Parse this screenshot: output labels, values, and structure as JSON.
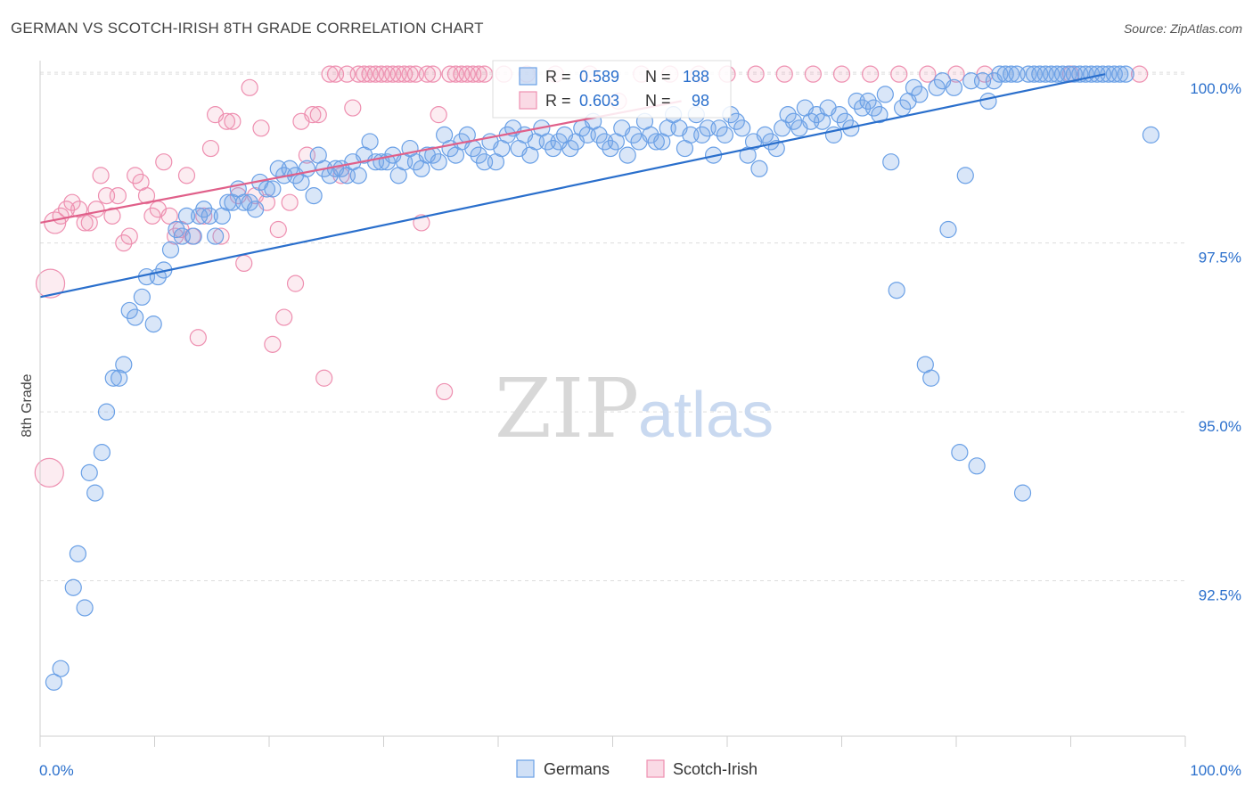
{
  "header": {
    "title": "GERMAN VS SCOTCH-IRISH 8TH GRADE CORRELATION CHART",
    "source": "Source: ZipAtlas.com"
  },
  "watermark": {
    "zip": "ZIP",
    "atlas": "atlas"
  },
  "colors": {
    "germans": "#6aa0e6",
    "germans_fill": "rgba(120,165,230,0.28)",
    "germans_line": "#2a6fcc",
    "scotch_irish": "#ee8fb0",
    "scotch_irish_fill": "rgba(240,150,180,0.18)",
    "scotch_irish_line": "#e0608a",
    "value_text": "#2a6fcc",
    "grid": "#dddddd"
  },
  "legend_box": {
    "row1": {
      "r_label": "R = ",
      "r_value": "0.589",
      "n_label": "N = ",
      "n_value": "188"
    },
    "row2": {
      "r_label": "R = ",
      "r_value": "0.603",
      "n_label": "N = ",
      "n_value": "98"
    }
  },
  "chart_data": {
    "type": "scatter",
    "title": "GERMAN VS SCOTCH-IRISH 8TH GRADE CORRELATION CHART",
    "xlabel": "",
    "ylabel": "8th Grade",
    "xlim": [
      0,
      100
    ],
    "ylim": [
      90.2,
      100.2
    ],
    "x_tick_labels": [
      "0.0%",
      "100.0%"
    ],
    "y_ticks": [
      92.5,
      95.0,
      97.5,
      100.0
    ],
    "y_tick_labels": [
      "92.5%",
      "95.0%",
      "97.5%",
      "100.0%"
    ],
    "grid": true,
    "legend_position": "bottom-center",
    "series": [
      {
        "name": "Germans",
        "r": 0.589,
        "n": 188,
        "trend": [
          [
            0,
            96.7
          ],
          [
            93,
            100.0
          ]
        ],
        "points": [
          [
            1.2,
            91.0
          ],
          [
            1.8,
            91.2
          ],
          [
            2.9,
            92.4
          ],
          [
            3.3,
            92.9
          ],
          [
            3.9,
            92.1
          ],
          [
            4.3,
            94.1
          ],
          [
            4.8,
            93.8
          ],
          [
            5.4,
            94.4
          ],
          [
            5.8,
            95.0
          ],
          [
            6.4,
            95.5
          ],
          [
            6.9,
            95.5
          ],
          [
            7.3,
            95.7
          ],
          [
            7.8,
            96.5
          ],
          [
            8.3,
            96.4
          ],
          [
            8.9,
            96.7
          ],
          [
            9.3,
            97.0
          ],
          [
            9.9,
            96.3
          ],
          [
            10.3,
            97.0
          ],
          [
            10.8,
            97.1
          ],
          [
            11.4,
            97.4
          ],
          [
            11.9,
            97.7
          ],
          [
            12.4,
            97.6
          ],
          [
            12.8,
            97.9
          ],
          [
            13.4,
            97.6
          ],
          [
            13.9,
            97.9
          ],
          [
            14.3,
            98.0
          ],
          [
            14.8,
            97.9
          ],
          [
            15.3,
            97.6
          ],
          [
            15.9,
            97.9
          ],
          [
            16.4,
            98.1
          ],
          [
            16.8,
            98.1
          ],
          [
            17.3,
            98.3
          ],
          [
            17.8,
            98.1
          ],
          [
            18.3,
            98.1
          ],
          [
            18.8,
            98.0
          ],
          [
            19.2,
            98.4
          ],
          [
            19.8,
            98.3
          ],
          [
            20.3,
            98.3
          ],
          [
            20.8,
            98.6
          ],
          [
            21.3,
            98.5
          ],
          [
            21.8,
            98.6
          ],
          [
            22.3,
            98.5
          ],
          [
            22.8,
            98.4
          ],
          [
            23.3,
            98.6
          ],
          [
            23.9,
            98.2
          ],
          [
            24.3,
            98.8
          ],
          [
            24.8,
            98.6
          ],
          [
            25.3,
            98.5
          ],
          [
            25.8,
            98.6
          ],
          [
            26.3,
            98.6
          ],
          [
            26.8,
            98.5
          ],
          [
            27.3,
            98.7
          ],
          [
            27.8,
            98.5
          ],
          [
            28.3,
            98.8
          ],
          [
            28.8,
            99.0
          ],
          [
            29.3,
            98.7
          ],
          [
            29.8,
            98.7
          ],
          [
            30.3,
            98.7
          ],
          [
            30.8,
            98.8
          ],
          [
            31.3,
            98.5
          ],
          [
            31.8,
            98.7
          ],
          [
            32.3,
            98.9
          ],
          [
            32.8,
            98.7
          ],
          [
            33.3,
            98.6
          ],
          [
            33.8,
            98.8
          ],
          [
            34.3,
            98.8
          ],
          [
            34.8,
            98.7
          ],
          [
            35.3,
            99.1
          ],
          [
            35.8,
            98.9
          ],
          [
            36.3,
            98.8
          ],
          [
            36.8,
            99.0
          ],
          [
            37.3,
            99.1
          ],
          [
            37.8,
            98.9
          ],
          [
            38.3,
            98.8
          ],
          [
            38.8,
            98.7
          ],
          [
            39.3,
            99.0
          ],
          [
            39.8,
            98.7
          ],
          [
            40.3,
            98.9
          ],
          [
            40.8,
            99.1
          ],
          [
            41.3,
            99.2
          ],
          [
            41.8,
            98.9
          ],
          [
            42.3,
            99.1
          ],
          [
            42.8,
            98.8
          ],
          [
            43.3,
            99.0
          ],
          [
            43.8,
            99.2
          ],
          [
            44.3,
            99.0
          ],
          [
            44.8,
            98.9
          ],
          [
            45.3,
            99.0
          ],
          [
            45.8,
            99.1
          ],
          [
            46.3,
            98.9
          ],
          [
            46.8,
            99.0
          ],
          [
            47.3,
            99.2
          ],
          [
            47.8,
            99.1
          ],
          [
            48.3,
            99.3
          ],
          [
            48.8,
            99.1
          ],
          [
            49.3,
            99.0
          ],
          [
            49.8,
            98.9
          ],
          [
            50.3,
            99.0
          ],
          [
            50.8,
            99.2
          ],
          [
            51.3,
            98.8
          ],
          [
            51.8,
            99.1
          ],
          [
            52.3,
            99.0
          ],
          [
            52.8,
            99.3
          ],
          [
            53.3,
            99.1
          ],
          [
            53.8,
            99.0
          ],
          [
            54.3,
            99.0
          ],
          [
            54.8,
            99.2
          ],
          [
            55.3,
            99.4
          ],
          [
            55.8,
            99.2
          ],
          [
            56.3,
            98.9
          ],
          [
            56.8,
            99.1
          ],
          [
            57.3,
            99.4
          ],
          [
            57.8,
            99.1
          ],
          [
            58.3,
            99.2
          ],
          [
            58.8,
            98.8
          ],
          [
            59.3,
            99.2
          ],
          [
            59.8,
            99.1
          ],
          [
            60.3,
            99.4
          ],
          [
            60.8,
            99.3
          ],
          [
            61.3,
            99.2
          ],
          [
            61.8,
            98.8
          ],
          [
            62.3,
            99.0
          ],
          [
            62.8,
            98.6
          ],
          [
            63.3,
            99.1
          ],
          [
            63.8,
            99.0
          ],
          [
            64.3,
            98.9
          ],
          [
            64.8,
            99.2
          ],
          [
            65.3,
            99.4
          ],
          [
            65.8,
            99.3
          ],
          [
            66.3,
            99.2
          ],
          [
            66.8,
            99.5
          ],
          [
            67.3,
            99.3
          ],
          [
            67.8,
            99.4
          ],
          [
            68.3,
            99.3
          ],
          [
            68.8,
            99.5
          ],
          [
            69.3,
            99.1
          ],
          [
            69.8,
            99.4
          ],
          [
            70.3,
            99.3
          ],
          [
            70.8,
            99.2
          ],
          [
            71.3,
            99.6
          ],
          [
            71.8,
            99.5
          ],
          [
            72.3,
            99.6
          ],
          [
            72.8,
            99.5
          ],
          [
            73.3,
            99.4
          ],
          [
            73.8,
            99.7
          ],
          [
            74.3,
            98.7
          ],
          [
            74.8,
            96.8
          ],
          [
            75.3,
            99.5
          ],
          [
            75.8,
            99.6
          ],
          [
            76.3,
            99.8
          ],
          [
            76.8,
            99.7
          ],
          [
            77.3,
            95.7
          ],
          [
            77.8,
            95.5
          ],
          [
            78.3,
            99.8
          ],
          [
            78.8,
            99.9
          ],
          [
            79.3,
            97.7
          ],
          [
            79.8,
            99.8
          ],
          [
            80.3,
            94.4
          ],
          [
            80.8,
            98.5
          ],
          [
            81.3,
            99.9
          ],
          [
            81.8,
            94.2
          ],
          [
            82.3,
            99.9
          ],
          [
            82.8,
            99.6
          ],
          [
            83.3,
            99.9
          ],
          [
            83.8,
            100.0
          ],
          [
            84.3,
            100.0
          ],
          [
            84.8,
            100.0
          ],
          [
            85.3,
            100.0
          ],
          [
            85.8,
            93.8
          ],
          [
            86.3,
            100.0
          ],
          [
            86.8,
            100.0
          ],
          [
            87.3,
            100.0
          ],
          [
            87.8,
            100.0
          ],
          [
            88.3,
            100.0
          ],
          [
            88.8,
            100.0
          ],
          [
            89.3,
            100.0
          ],
          [
            89.8,
            100.0
          ],
          [
            90.3,
            100.0
          ],
          [
            90.8,
            100.0
          ],
          [
            91.3,
            100.0
          ],
          [
            91.8,
            100.0
          ],
          [
            92.3,
            100.0
          ],
          [
            92.8,
            100.0
          ],
          [
            93.3,
            100.0
          ],
          [
            93.8,
            100.0
          ],
          [
            94.3,
            100.0
          ],
          [
            94.8,
            100.0
          ],
          [
            97.0,
            99.1
          ]
        ]
      },
      {
        "name": "Scotch-Irish",
        "r": 0.603,
        "n": 98,
        "trend": [
          [
            0,
            97.8
          ],
          [
            56,
            99.6
          ]
        ],
        "points": [
          [
            0.8,
            94.1
          ],
          [
            0.9,
            96.9
          ],
          [
            1.3,
            97.8
          ],
          [
            1.8,
            97.9
          ],
          [
            2.3,
            98.0
          ],
          [
            2.8,
            98.1
          ],
          [
            3.4,
            98.0
          ],
          [
            3.9,
            97.8
          ],
          [
            4.3,
            97.8
          ],
          [
            4.9,
            98.0
          ],
          [
            5.3,
            98.5
          ],
          [
            5.8,
            98.2
          ],
          [
            6.3,
            97.9
          ],
          [
            6.8,
            98.2
          ],
          [
            7.3,
            97.5
          ],
          [
            7.8,
            97.6
          ],
          [
            8.3,
            98.5
          ],
          [
            8.8,
            98.4
          ],
          [
            9.3,
            98.2
          ],
          [
            9.8,
            97.9
          ],
          [
            10.3,
            98.0
          ],
          [
            10.8,
            98.7
          ],
          [
            11.3,
            97.9
          ],
          [
            11.8,
            97.6
          ],
          [
            12.3,
            97.7
          ],
          [
            12.8,
            98.5
          ],
          [
            13.3,
            97.6
          ],
          [
            13.8,
            96.1
          ],
          [
            14.3,
            97.9
          ],
          [
            14.9,
            98.9
          ],
          [
            15.3,
            99.4
          ],
          [
            15.8,
            97.6
          ],
          [
            16.3,
            99.3
          ],
          [
            16.8,
            99.3
          ],
          [
            17.3,
            98.2
          ],
          [
            17.8,
            97.2
          ],
          [
            18.3,
            99.8
          ],
          [
            18.8,
            98.2
          ],
          [
            19.3,
            99.2
          ],
          [
            19.8,
            98.1
          ],
          [
            20.3,
            96.0
          ],
          [
            20.8,
            97.7
          ],
          [
            21.3,
            96.4
          ],
          [
            21.8,
            98.1
          ],
          [
            22.3,
            96.9
          ],
          [
            22.8,
            99.3
          ],
          [
            23.3,
            98.8
          ],
          [
            23.8,
            99.4
          ],
          [
            24.3,
            99.4
          ],
          [
            24.8,
            95.5
          ],
          [
            25.3,
            100.0
          ],
          [
            25.8,
            100.0
          ],
          [
            26.3,
            98.5
          ],
          [
            26.8,
            100.0
          ],
          [
            27.3,
            99.5
          ],
          [
            27.8,
            100.0
          ],
          [
            28.3,
            100.0
          ],
          [
            28.8,
            100.0
          ],
          [
            29.3,
            100.0
          ],
          [
            29.8,
            100.0
          ],
          [
            30.3,
            100.0
          ],
          [
            30.8,
            100.0
          ],
          [
            31.3,
            100.0
          ],
          [
            31.8,
            100.0
          ],
          [
            32.3,
            100.0
          ],
          [
            32.8,
            100.0
          ],
          [
            33.3,
            97.8
          ],
          [
            33.8,
            100.0
          ],
          [
            34.3,
            100.0
          ],
          [
            34.8,
            99.4
          ],
          [
            35.3,
            95.3
          ],
          [
            35.8,
            100.0
          ],
          [
            36.3,
            100.0
          ],
          [
            36.8,
            100.0
          ],
          [
            37.3,
            100.0
          ],
          [
            37.8,
            100.0
          ],
          [
            38.3,
            100.0
          ],
          [
            38.8,
            100.0
          ],
          [
            40.5,
            100.0
          ],
          [
            42.5,
            100.0
          ],
          [
            45.0,
            100.0
          ],
          [
            48.0,
            100.0
          ],
          [
            50.5,
            99.6
          ],
          [
            52.5,
            100.0
          ],
          [
            55.0,
            100.0
          ],
          [
            57.5,
            100.0
          ],
          [
            60.0,
            100.0
          ],
          [
            62.5,
            100.0
          ],
          [
            65.0,
            100.0
          ],
          [
            67.5,
            100.0
          ],
          [
            70.0,
            100.0
          ],
          [
            72.5,
            100.0
          ],
          [
            75.0,
            100.0
          ],
          [
            77.5,
            100.0
          ],
          [
            80.0,
            100.0
          ],
          [
            82.5,
            100.0
          ],
          [
            90.0,
            100.0
          ],
          [
            96.0,
            100.0
          ]
        ]
      }
    ]
  }
}
